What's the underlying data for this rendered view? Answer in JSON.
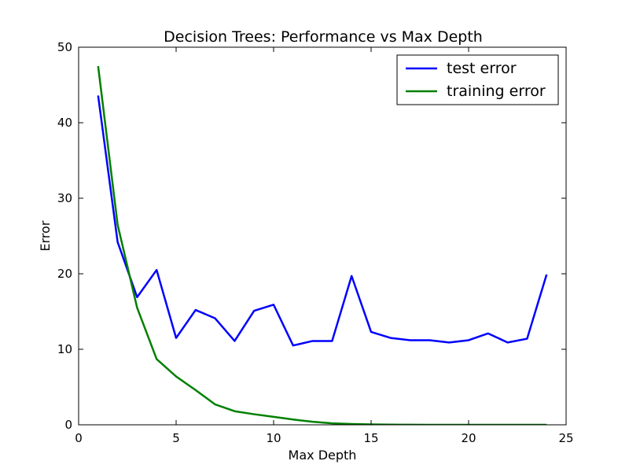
{
  "chart_data": {
    "type": "line",
    "title": "Decision Trees: Performance vs Max Depth",
    "xlabel": "Max Depth",
    "ylabel": "Error",
    "xlim": [
      0,
      25
    ],
    "ylim": [
      0,
      50
    ],
    "xticks": [
      0,
      5,
      10,
      15,
      20,
      25
    ],
    "yticks": [
      0,
      10,
      20,
      30,
      40,
      50
    ],
    "grid": false,
    "legend_position": "top-right",
    "x": [
      1,
      2,
      3,
      4,
      5,
      6,
      7,
      8,
      9,
      10,
      11,
      12,
      13,
      14,
      15,
      16,
      17,
      18,
      19,
      20,
      21,
      22,
      23,
      24
    ],
    "series": [
      {
        "name": "test error",
        "color": "#0000ff",
        "values": [
          43.6,
          24.2,
          16.9,
          20.5,
          11.5,
          15.2,
          14.1,
          11.1,
          15.1,
          15.9,
          10.5,
          11.1,
          11.1,
          19.7,
          12.3,
          11.5,
          11.2,
          11.2,
          10.9,
          11.2,
          12.1,
          10.9,
          11.4,
          19.9
        ]
      },
      {
        "name": "training error",
        "color": "#008000",
        "values": [
          47.5,
          26.5,
          15.5,
          8.7,
          6.4,
          4.6,
          2.7,
          1.8,
          1.4,
          1.05,
          0.7,
          0.4,
          0.2,
          0.1,
          0.05,
          0.02,
          0.01,
          0.0,
          0.0,
          0.0,
          0.0,
          0.0,
          0.0,
          0.0
        ]
      }
    ]
  }
}
